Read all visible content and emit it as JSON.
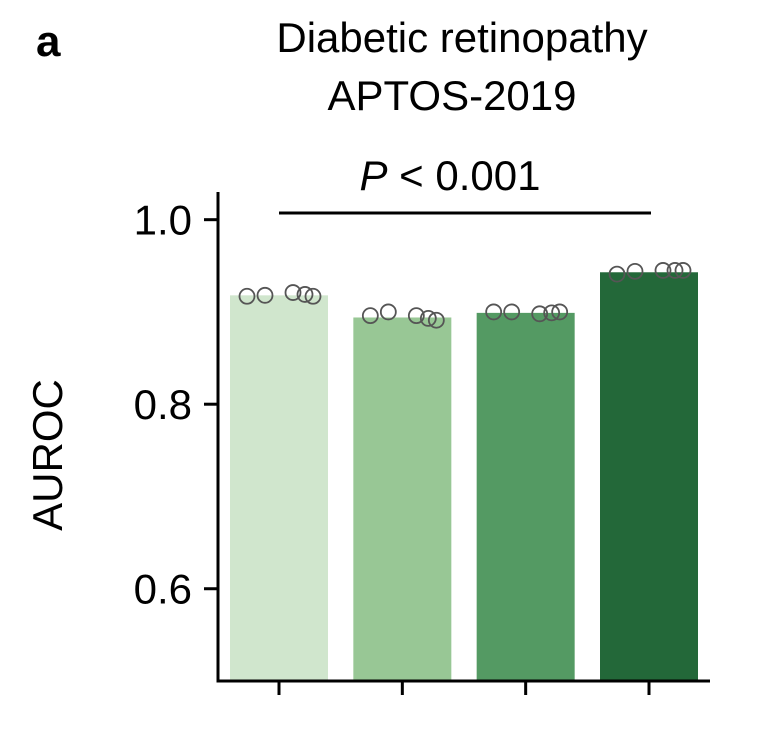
{
  "panel_label": "a",
  "chart_data": {
    "type": "bar",
    "title": "Diabetic retinopathy",
    "subtitle": "APTOS-2019",
    "xlabel": "",
    "ylabel": "AUROC",
    "ylim": [
      0.5,
      1.03
    ],
    "yticks": [
      0.6,
      0.8,
      1.0
    ],
    "ytick_labels": [
      "0.6",
      "0.8",
      "1.0"
    ],
    "categories": [
      "",
      "",
      "",
      ""
    ],
    "values": [
      0.918,
      0.894,
      0.899,
      0.943
    ],
    "colors": [
      "#d0e6cd",
      "#98c795",
      "#549a63",
      "#236839"
    ],
    "points": [
      [
        0.917,
        0.918,
        0.921,
        0.919,
        0.917
      ],
      [
        0.896,
        0.9,
        0.896,
        0.893,
        0.891
      ],
      [
        0.9,
        0.9,
        0.898,
        0.899,
        0.9
      ],
      [
        0.941,
        0.944,
        0.945,
        0.945,
        0.945
      ]
    ],
    "significance": {
      "italic": "P",
      "text": " < 0.001"
    },
    "grid": false
  }
}
